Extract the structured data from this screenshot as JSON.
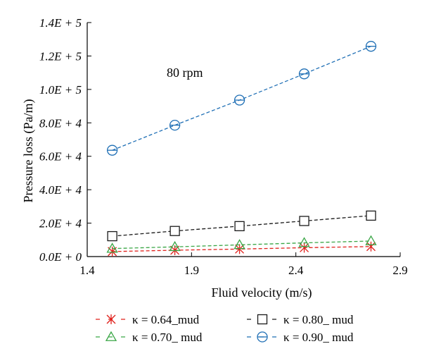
{
  "chart_data": {
    "type": "line",
    "title": "",
    "xlabel": "Fluid velocity (m/s)",
    "ylabel": "Pressure loss (Pa/m)",
    "xlim": [
      1.4,
      2.9
    ],
    "ylim": [
      0,
      140000
    ],
    "x_ticks": [
      1.4,
      1.9,
      2.4,
      2.9
    ],
    "x_tick_labels": [
      "1.4",
      "1.9",
      "2.4",
      "2.9"
    ],
    "y_ticks": [
      0,
      20000,
      40000,
      60000,
      80000,
      100000,
      120000,
      140000
    ],
    "y_tick_labels": [
      "0.0E + 0",
      "2.0E + 4",
      "4.0E + 4",
      "6.0E + 4",
      "8.0E + 4",
      "1.0E + 5",
      "1.2E + 5",
      "1.4E + 5"
    ],
    "annotation": "80 rpm",
    "grid": false,
    "legend_position": "bottom",
    "x": [
      1.52,
      1.82,
      2.13,
      2.44,
      2.76
    ],
    "series": [
      {
        "name": "κ = 0.64_mud",
        "marker": "asterisk",
        "color": "#e0201b",
        "values": [
          3000,
          3800,
          4500,
          5300,
          6000
        ]
      },
      {
        "name": "κ = 0.70_ mud",
        "marker": "triangle",
        "color": "#3aa646",
        "values": [
          4800,
          5800,
          7000,
          8200,
          9300
        ]
      },
      {
        "name": "κ = 0.80_ mud",
        "marker": "square",
        "color": "#1a1a1a",
        "values": [
          12200,
          15300,
          18200,
          21300,
          24500
        ]
      },
      {
        "name": "κ = 0.90_ mud",
        "marker": "circle",
        "color": "#1f6fb5",
        "values": [
          63600,
          78600,
          93600,
          109300,
          125800
        ]
      }
    ]
  }
}
